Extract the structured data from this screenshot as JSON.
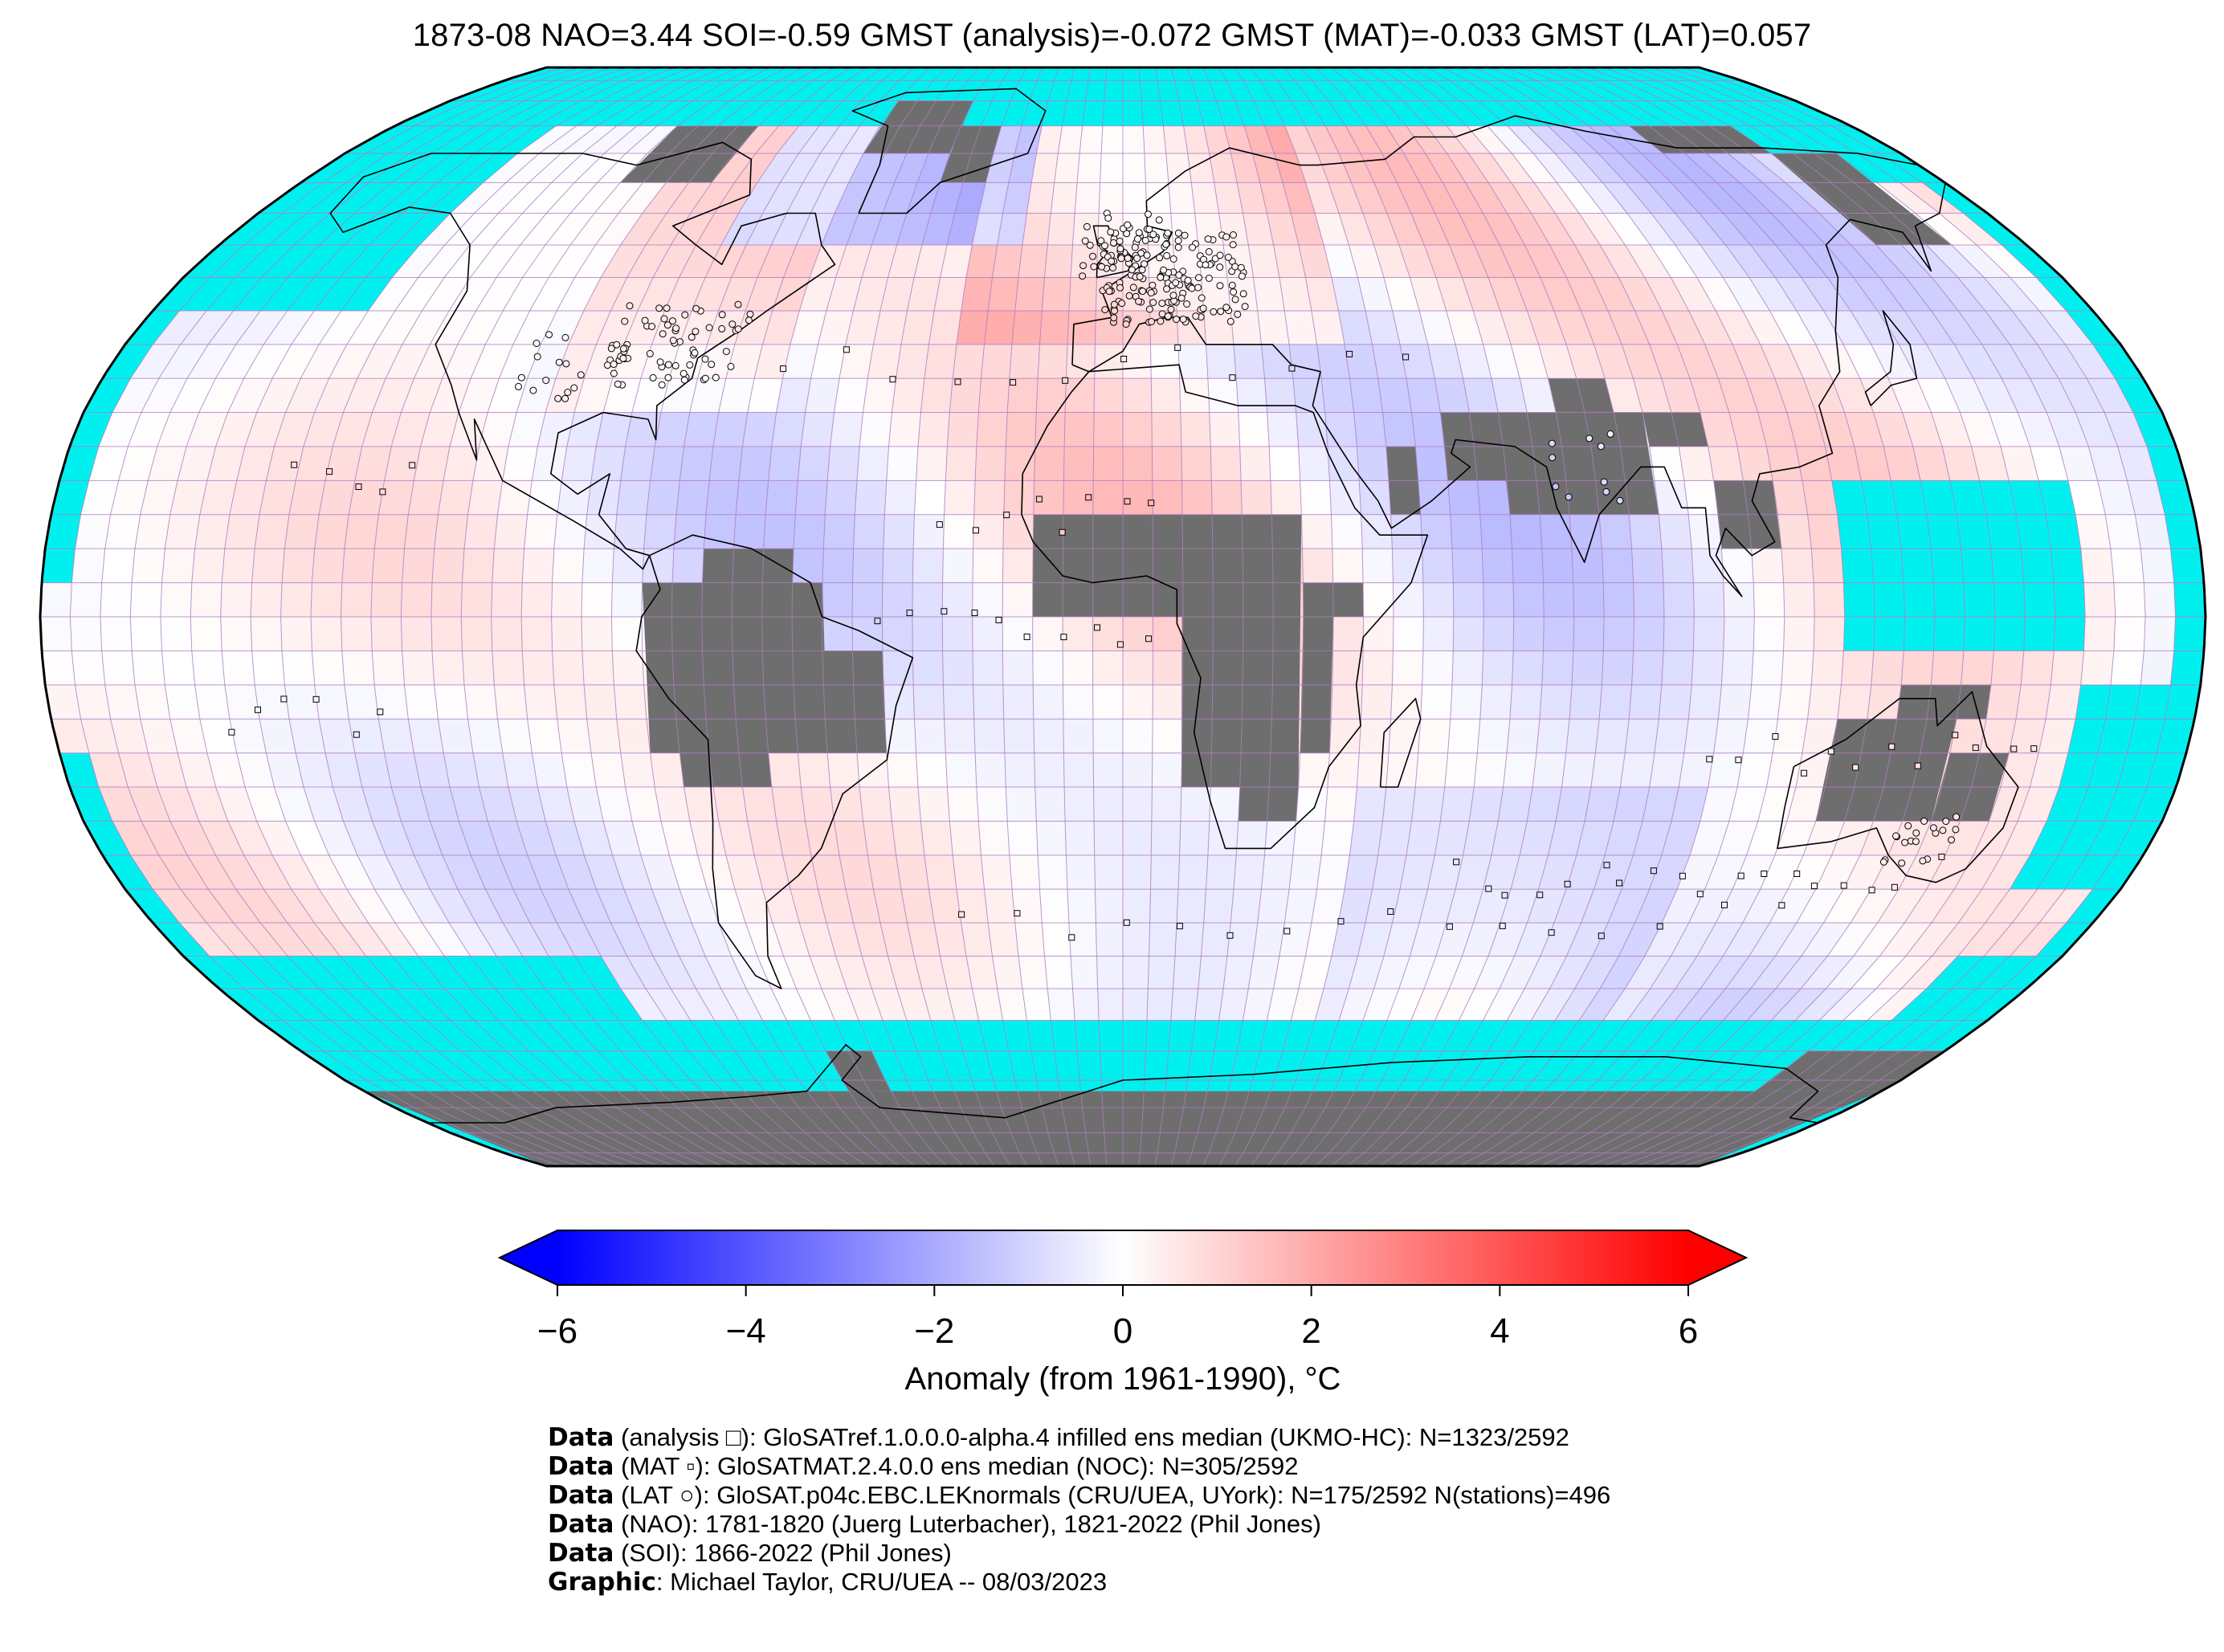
{
  "title": "1873-08 NAO=3.44 SOI=-0.59 GMST (analysis)=-0.072 GMST (MAT)=-0.033 GMST (LAT)=0.057",
  "colors": {
    "ocean_no_data": "#00f0f0",
    "land_no_data": "#6e6e6e",
    "grid_line": "#b07cc0",
    "coast": "#000000",
    "cold": "#0000ff",
    "neutral": "#ffffff",
    "warm": "#ff0000"
  },
  "colorbar": {
    "label": "Anomaly (from 1961-1990), °C",
    "ticks": [
      "−6",
      "−4",
      "−2",
      "0",
      "2",
      "4",
      "6"
    ],
    "range": [
      -6,
      6
    ],
    "extend": "both",
    "colormap": "bwr"
  },
  "map": {
    "projection": "Robinson",
    "grid_resolution_deg": 5,
    "markers": {
      "analysis": "square",
      "mat": "small square",
      "lat": "circle"
    }
  },
  "credits": [
    {
      "key": "Data",
      "text": " (analysis □): GloSATref.1.0.0.0-alpha.4 infilled ens median (UKMO-HC): N=1323/2592"
    },
    {
      "key": "Data",
      "text": " (MAT ▫): GloSATMAT.2.4.0.0 ens median (NOC): N=305/2592"
    },
    {
      "key": "Data",
      "text": " (LAT ○): GloSAT.p04c.EBC.LEKnormals (CRU/UEA, UYork): N=175/2592 N(stations)=496"
    },
    {
      "key": "Data",
      "text": " (NAO): 1781-1820 (Juerg Luterbacher), 1821-2022 (Phil Jones)"
    },
    {
      "key": "Data",
      "text": " (SOI): 1866-2022 (Phil Jones)"
    },
    {
      "key": "Graphic",
      "text": ": Michael Taylor, CRU/UEA -- 08/03/2023"
    }
  ]
}
